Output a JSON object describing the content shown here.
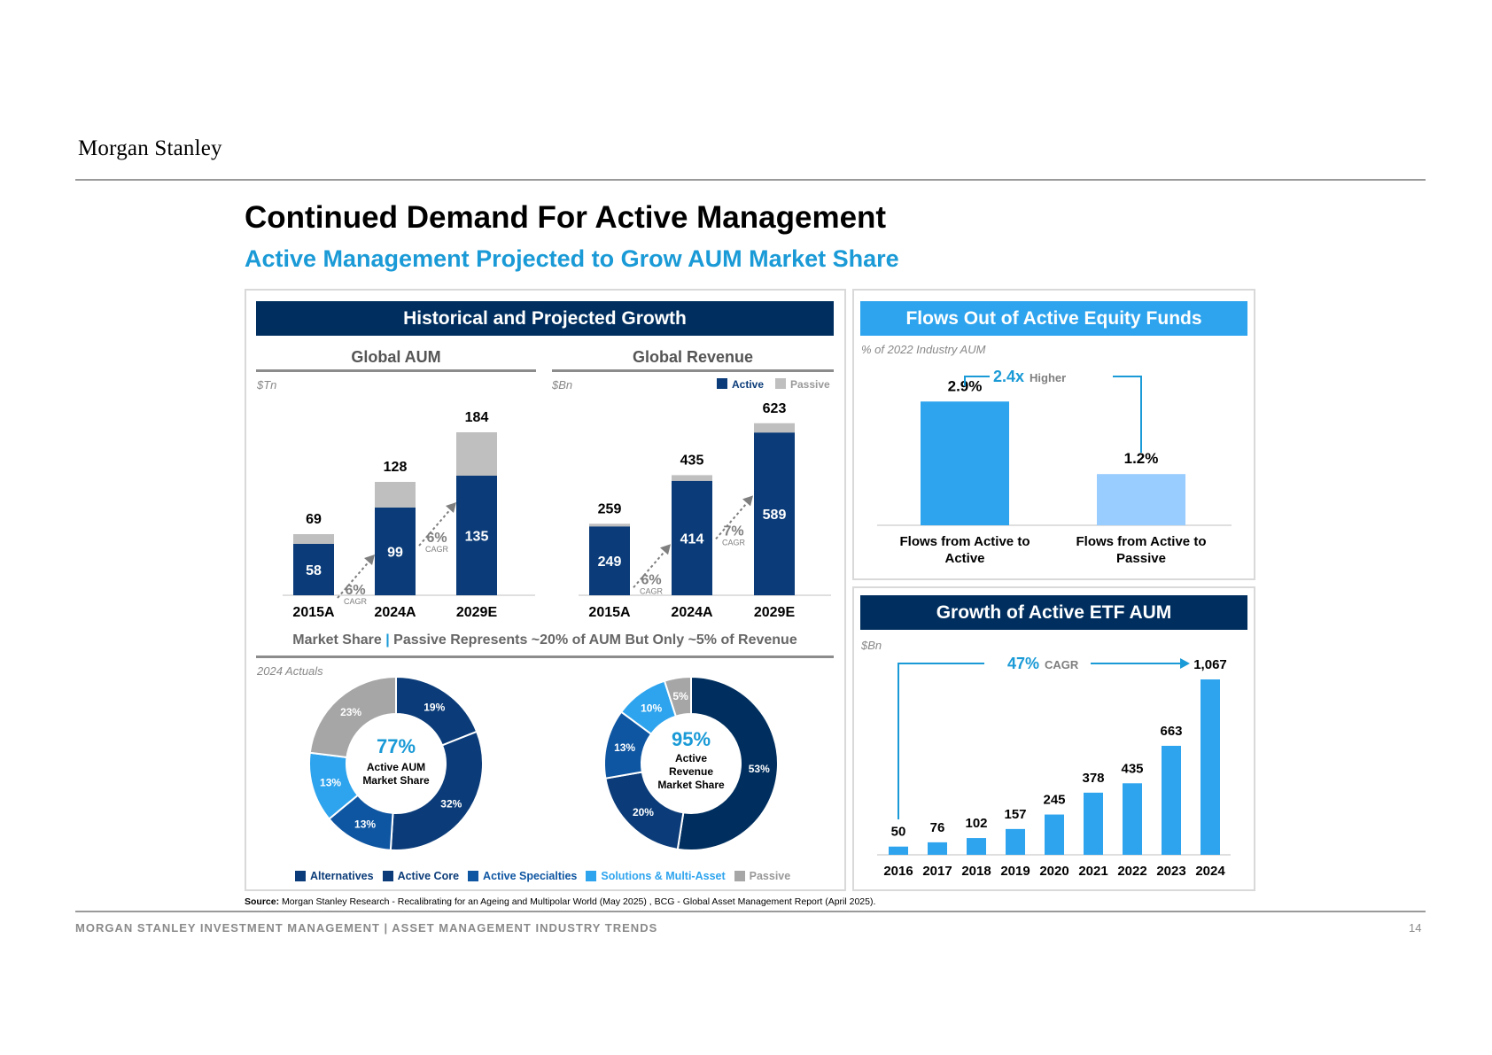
{
  "brand": {
    "logo_text": "Morgan Stanley"
  },
  "page": {
    "title": "Continued Demand For Active Management",
    "subtitle": "Active Management Projected to Grow AUM Market Share",
    "source_label": "Source:",
    "source_text": "Morgan Stanley Research - Recalibrating for an Ageing and Multipolar World (May 2025) , BCG - Global Asset Management Report (April 2025).",
    "footer_text": "MORGAN STANLEY INVESTMENT MANAGEMENT | ASSET MANAGEMENT INDUSTRY TRENDS",
    "page_number": "14"
  },
  "colors": {
    "navy": "#002f5f",
    "dark_blue": "#0b3c79",
    "medium_blue": "#0f56a2",
    "light_blue": "#2ea4ee",
    "pale_blue": "#99ccff",
    "grey": "#a6a6a6",
    "light_grey": "#bfbfbf",
    "accent": "#1a9ad6"
  },
  "left_panel": {
    "header": "Historical and Projected Growth",
    "aum_title": "Global AUM",
    "revenue_title": "Global Revenue",
    "aum_unit": "$Tn",
    "revenue_unit": "$Bn",
    "market_share_title_a": "Market Share",
    "market_share_sep": "|",
    "market_share_title_b": "Passive Represents ~20% of AUM But Only ~5% of Revenue",
    "actuals_note": "2024 Actuals",
    "legend": [
      {
        "label": "Alternatives",
        "color": "#0b3c79"
      },
      {
        "label": "Active Core",
        "color": "#0b3c79"
      },
      {
        "label": "Active Specialties",
        "color": "#0f56a2"
      },
      {
        "label": "Solutions & Multi-Asset",
        "color": "#2ea4ee"
      },
      {
        "label": "Passive",
        "color": "#a6a6a6"
      }
    ]
  },
  "right_top": {
    "header": "Flows Out of Active Equity Funds",
    "unit": "% of 2022 Industry AUM",
    "multiplier_value": "2.4x",
    "multiplier_text": "Higher"
  },
  "right_bottom": {
    "header": "Growth of Active ETF AUM",
    "unit": "$Bn",
    "cagr_value": "47%",
    "cagr_text": "CAGR"
  },
  "chart_data": [
    {
      "id": "global_aum",
      "type": "bar",
      "title": "Global AUM",
      "unit": "$Tn",
      "categories": [
        "2015A",
        "2024A",
        "2029E"
      ],
      "series": [
        {
          "name": "Active",
          "values": [
            58,
            99,
            135
          ]
        },
        {
          "name": "Passive",
          "values": [
            11,
            29,
            49
          ]
        }
      ],
      "totals": [
        69,
        128,
        184
      ],
      "stacked": true,
      "ylim": [
        0,
        200
      ],
      "annotations": [
        {
          "between": [
            "2015A",
            "2024A"
          ],
          "value": "6%",
          "label": "CAGR"
        },
        {
          "between": [
            "2024A",
            "2029E"
          ],
          "value": "6%",
          "label": "CAGR"
        }
      ]
    },
    {
      "id": "global_revenue",
      "type": "bar",
      "title": "Global Revenue",
      "unit": "$Bn",
      "categories": [
        "2015A",
        "2024A",
        "2029E"
      ],
      "series": [
        {
          "name": "Active",
          "values": [
            249,
            414,
            589
          ]
        },
        {
          "name": "Passive",
          "values": [
            10,
            21,
            34
          ]
        }
      ],
      "totals": [
        259,
        435,
        623
      ],
      "stacked": true,
      "ylim": [
        0,
        680
      ],
      "legend": [
        "Active",
        "Passive"
      ],
      "legend_position": "top-right",
      "annotations": [
        {
          "between": [
            "2015A",
            "2024A"
          ],
          "value": "6%",
          "label": "CAGR"
        },
        {
          "between": [
            "2024A",
            "2029E"
          ],
          "value": "7%",
          "label": "CAGR"
        }
      ]
    },
    {
      "id": "aum_market_share",
      "type": "pie",
      "donut": true,
      "slices": [
        {
          "name": "Alternatives",
          "value": 19
        },
        {
          "name": "Active Core",
          "value": 32
        },
        {
          "name": "Active Specialties",
          "value": 13
        },
        {
          "name": "Solutions & Multi-Asset",
          "value": 13
        },
        {
          "name": "Passive",
          "value": 23
        }
      ],
      "center_value": "77%",
      "center_label": [
        "Active AUM",
        "Market Share"
      ]
    },
    {
      "id": "revenue_market_share",
      "type": "pie",
      "donut": true,
      "slices": [
        {
          "name": "Alternatives",
          "value": 53
        },
        {
          "name": "Active Core",
          "value": 20
        },
        {
          "name": "Active Specialties",
          "value": 13
        },
        {
          "name": "Solutions & Multi-Asset",
          "value": 10
        },
        {
          "name": "Passive",
          "value": 5
        }
      ],
      "center_value": "95%",
      "center_label": [
        "Active",
        "Revenue",
        "Market Share"
      ]
    },
    {
      "id": "flows_out_active_equity",
      "type": "bar",
      "unit": "% of 2022 Industry AUM",
      "categories": [
        [
          "Flows from Active to",
          "Active"
        ],
        [
          "Flows from Active to",
          "Passive"
        ]
      ],
      "values": [
        2.9,
        1.2
      ],
      "value_labels": [
        "2.9%",
        "1.2%"
      ],
      "ylim": [
        0,
        3.4
      ]
    },
    {
      "id": "active_etf_aum",
      "type": "bar",
      "unit": "$Bn",
      "categories": [
        "2016",
        "2017",
        "2018",
        "2019",
        "2020",
        "2021",
        "2022",
        "2023",
        "2024"
      ],
      "values": [
        50,
        76,
        102,
        157,
        245,
        378,
        435,
        663,
        1067
      ],
      "value_labels": [
        "50",
        "76",
        "102",
        "157",
        "245",
        "378",
        "435",
        "663",
        "1,067"
      ],
      "ylim": [
        0,
        1100
      ]
    }
  ]
}
